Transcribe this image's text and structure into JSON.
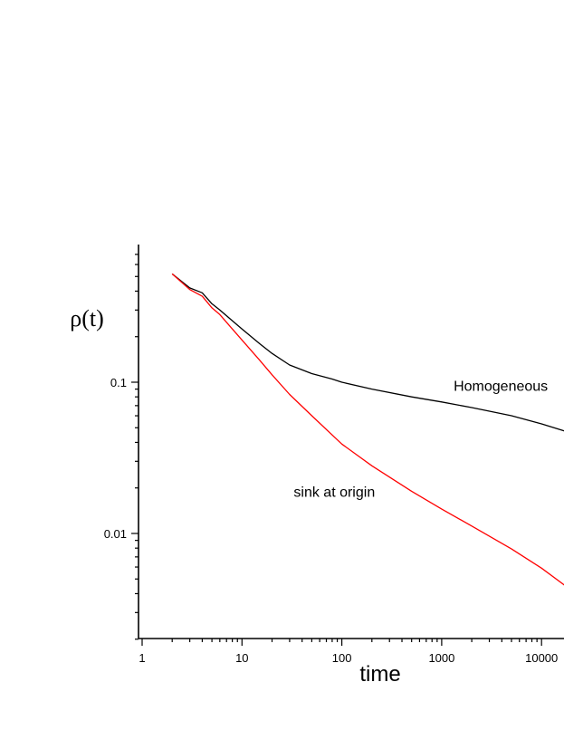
{
  "chart_data": {
    "type": "line",
    "title": "",
    "xlabel": "time",
    "ylabel": "ρ(t)",
    "xscale": "log",
    "yscale": "log",
    "xlim": [
      1,
      20000
    ],
    "ylim": [
      0.002,
      0.75
    ],
    "grid": false,
    "x_ticks": [
      {
        "value": 1,
        "label": "1"
      },
      {
        "value": 10,
        "label": "10"
      },
      {
        "value": 100,
        "label": "100"
      },
      {
        "value": 1000,
        "label": "1000"
      },
      {
        "value": 10000,
        "label": "10000"
      }
    ],
    "y_ticks": [
      {
        "value": 0.01,
        "label": "0.01"
      },
      {
        "value": 0.1,
        "label": "0.1"
      }
    ],
    "series": [
      {
        "color": "#000000",
        "x": [
          2,
          3,
          4,
          5,
          6,
          8,
          10,
          15,
          20,
          30,
          50,
          80,
          100,
          200,
          500,
          1000,
          2000,
          5000,
          10000,
          20000
        ],
        "y": [
          0.52,
          0.42,
          0.39,
          0.33,
          0.3,
          0.255,
          0.225,
          0.18,
          0.155,
          0.13,
          0.114,
          0.105,
          0.1,
          0.09,
          0.08,
          0.074,
          0.068,
          0.06,
          0.053,
          0.046
        ]
      },
      {
        "color": "#ff0000",
        "x": [
          2,
          3,
          4,
          5,
          6,
          8,
          10,
          15,
          20,
          30,
          50,
          100,
          200,
          500,
          1000,
          2000,
          5000,
          10000,
          20000
        ],
        "y": [
          0.52,
          0.41,
          0.37,
          0.31,
          0.28,
          0.225,
          0.19,
          0.14,
          0.112,
          0.083,
          0.06,
          0.039,
          0.028,
          0.019,
          0.0145,
          0.0112,
          0.0079,
          0.0059,
          0.0042
        ]
      }
    ],
    "annotations": [
      {
        "text": "Homogeneous",
        "x": 2000,
        "y": 0.095
      },
      {
        "text": "sink at origin",
        "x": 50,
        "y": 0.019
      }
    ]
  }
}
